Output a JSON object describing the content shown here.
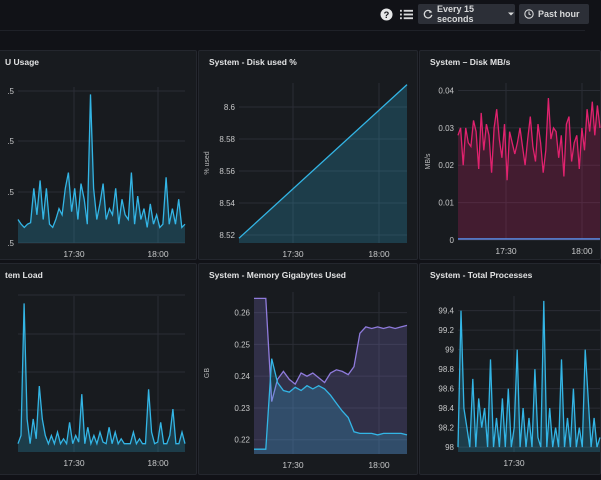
{
  "toolbar": {
    "refresh_label": "Every 15 seconds",
    "time_range_label": "Past hour",
    "icons": [
      "help-icon",
      "list-icon",
      "refresh-icon",
      "chevron-down-icon",
      "clock-icon"
    ]
  },
  "colors": {
    "cyan": "#33b5e5",
    "red": "#e0226e",
    "blue": "#5794f2",
    "purple": "#8f7bdc"
  },
  "panels": [
    {
      "id": "cpu",
      "title": "U Usage",
      "chart_data": {
        "type": "area",
        "x_ticks": [
          "17:30",
          "18:00"
        ],
        "y_ticks": [
          ".5",
          ".5",
          ".5",
          ".5"
        ],
        "ylabel": "",
        "series": [
          {
            "color": "#33b5e5",
            "values": [
              0.15,
              0.12,
              0.1,
              0.12,
              0.13,
              0.35,
              0.18,
              0.4,
              0.15,
              0.35,
              0.12,
              0.1,
              0.15,
              0.22,
              0.18,
              0.35,
              0.45,
              0.2,
              0.35,
              0.15,
              0.38,
              0.28,
              0.12,
              0.95,
              0.35,
              0.15,
              0.25,
              0.38,
              0.15,
              0.22,
              0.18,
              0.35,
              0.12,
              0.28,
              0.18,
              0.15,
              0.45,
              0.12,
              0.3,
              0.15,
              0.22,
              0.1,
              0.25,
              0.12,
              0.18,
              0.1,
              0.12,
              0.42,
              0.12,
              0.22,
              0.12,
              0.28,
              0.1,
              0.12
            ]
          }
        ]
      }
    },
    {
      "id": "disk_used",
      "title": "System - Disk used %",
      "chart_data": {
        "type": "area",
        "x_ticks": [
          "17:30",
          "18:00"
        ],
        "y_ticks": [
          "8.52",
          "8.54",
          "8.56",
          "8.58",
          "8.6"
        ],
        "ylabel": "% used",
        "ylim": [
          8.515,
          8.615
        ],
        "series": [
          {
            "color": "#33b5e5",
            "values": [
              8.518,
              8.614
            ]
          }
        ]
      }
    },
    {
      "id": "disk_mbs",
      "title": "System – Disk MB/s",
      "chart_data": {
        "type": "area",
        "x_ticks": [
          "17:30",
          "18:00"
        ],
        "y_ticks": [
          "0",
          "0.01",
          "0.02",
          "0.03",
          "0.04"
        ],
        "ylabel": "MB/s",
        "ylim": [
          0,
          0.042
        ],
        "series": [
          {
            "color": "#e0226e",
            "values": [
              0.028,
              0.03,
              0.02,
              0.03,
              0.026,
              0.025,
              0.032,
              0.029,
              0.019,
              0.034,
              0.024,
              0.031,
              0.028,
              0.018,
              0.03,
              0.035,
              0.027,
              0.022,
              0.031,
              0.016,
              0.029,
              0.026,
              0.023,
              0.026,
              0.03,
              0.025,
              0.02,
              0.027,
              0.033,
              0.025,
              0.021,
              0.031,
              0.026,
              0.018,
              0.024,
              0.038,
              0.027,
              0.03,
              0.029,
              0.022,
              0.028,
              0.017,
              0.031,
              0.033,
              0.021,
              0.026,
              0.028,
              0.019,
              0.03,
              0.024,
              0.035,
              0.029,
              0.037,
              0.028,
              0.036,
              0.03
            ]
          },
          {
            "color": "#5794f2",
            "values": [
              0.0003,
              0.0003
            ]
          }
        ]
      }
    },
    {
      "id": "load",
      "title": "tem Load",
      "chart_data": {
        "type": "area",
        "x_ticks": [
          "17:30",
          "18:00"
        ],
        "y_ticks": [
          "",
          "",
          "",
          ""
        ],
        "ylabel": "",
        "series": [
          {
            "color": "#33b5e5",
            "values": [
              0.05,
              0.1,
              0.9,
              0.2,
              0.05,
              0.2,
              0.08,
              0.4,
              0.2,
              0.1,
              0.05,
              0.1,
              0.05,
              0.12,
              0.05,
              0.08,
              0.05,
              0.18,
              0.05,
              0.1,
              0.06,
              0.35,
              0.05,
              0.15,
              0.05,
              0.1,
              0.05,
              0.12,
              0.06,
              0.05,
              0.15,
              0.05,
              0.12,
              0.05,
              0.08,
              0.05,
              0.05,
              0.05,
              0.12,
              0.05,
              0.08,
              0.05,
              0.05,
              0.38,
              0.12,
              0.05,
              0.06,
              0.18,
              0.05,
              0.05,
              0.1,
              0.26,
              0.05,
              0.05,
              0.12,
              0.05
            ]
          }
        ]
      }
    },
    {
      "id": "memory",
      "title": "System - Memory Gigabytes Used",
      "chart_data": {
        "type": "area",
        "x_ticks": [
          "17:30",
          "18:00"
        ],
        "y_ticks": [
          "0.22",
          "0.23",
          "0.24",
          "0.25",
          "0.26"
        ],
        "ylabel": "GB",
        "ylim": [
          0.2155,
          0.2665
        ],
        "series": [
          {
            "color": "#8f7bdc",
            "values": [
              0.2645,
              0.2645,
              0.2645,
              0.232,
              0.239,
              0.2415,
              0.239,
              0.2375,
              0.241,
              0.24,
              0.241,
              0.2395,
              0.238,
              0.241,
              0.242,
              0.2415,
              0.2405,
              0.243,
              0.2535,
              0.2555,
              0.255,
              0.2555,
              0.255,
              0.2555,
              0.255,
              0.2555,
              0.256
            ]
          },
          {
            "color": "#33b5e5",
            "values": [
              0.217,
              0.217,
              0.217,
              0.2455,
              0.238,
              0.2355,
              0.235,
              0.2365,
              0.2355,
              0.237,
              0.236,
              0.237,
              0.236,
              0.234,
              0.2315,
              0.229,
              0.227,
              0.2225,
              0.222,
              0.222,
              0.222,
              0.2215,
              0.222,
              0.222,
              0.222,
              0.222,
              0.2215
            ]
          }
        ]
      }
    },
    {
      "id": "processes",
      "title": "System - Total Processes",
      "chart_data": {
        "type": "area",
        "x_ticks": [
          "17:30"
        ],
        "y_ticks": [
          "98",
          "98.2",
          "98.4",
          "98.6",
          "98.8",
          "99",
          "99.2",
          "99.4"
        ],
        "ylabel": "",
        "ylim": [
          97.95,
          99.55
        ],
        "series": [
          {
            "color": "#33b5e5",
            "values": [
              98,
              99.4,
              98.4,
              98.2,
              98,
              98.7,
              98,
              98.5,
              98.2,
              98.4,
              98,
              98.9,
              98,
              98.3,
              98,
              98.5,
              98,
              98.6,
              98,
              98.2,
              99,
              98,
              98.4,
              98,
              98.3,
              98,
              98.8,
              98.1,
              98,
              99.5,
              98,
              98.4,
              98,
              98.2,
              98,
              98.9,
              98,
              98.3,
              98,
              98.6,
              98,
              98.2,
              98,
              99,
              98.5,
              98,
              98.3,
              98,
              98.1
            ]
          }
        ]
      }
    }
  ]
}
